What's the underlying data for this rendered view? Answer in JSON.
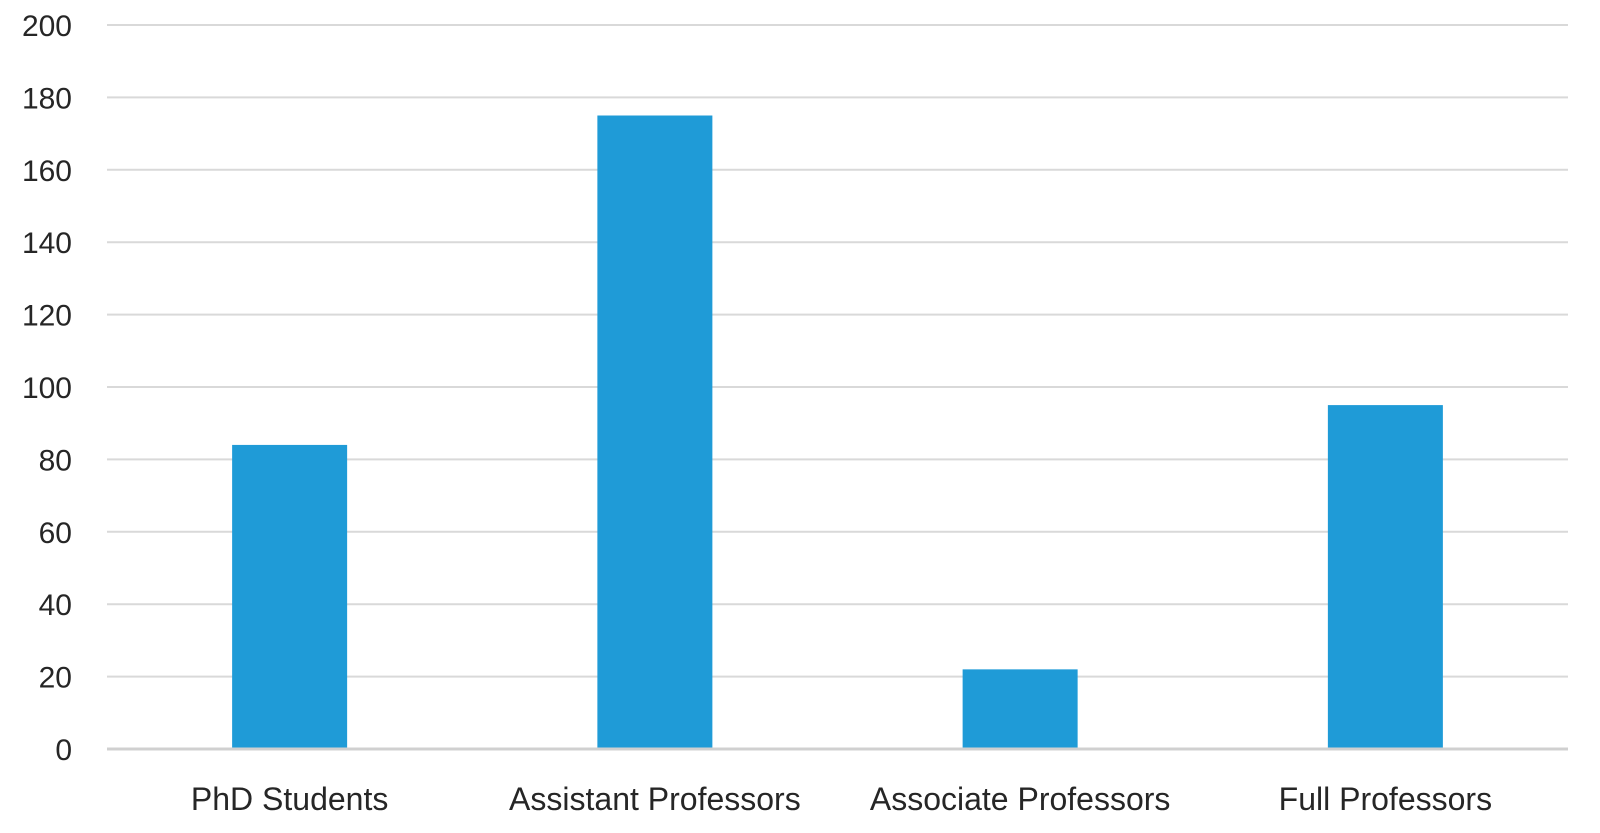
{
  "chart_data": {
    "type": "bar",
    "categories": [
      "PhD Students",
      "Assistant Professors",
      "Associate Professors",
      "Full Professors"
    ],
    "values": [
      84,
      175,
      22,
      95
    ],
    "ylim": [
      0,
      200
    ],
    "yticks": [
      0,
      20,
      40,
      60,
      80,
      100,
      120,
      140,
      160,
      180,
      200
    ],
    "grid": true,
    "bar_color": "#1f9bd7",
    "title": "",
    "xlabel": "",
    "ylabel": ""
  }
}
